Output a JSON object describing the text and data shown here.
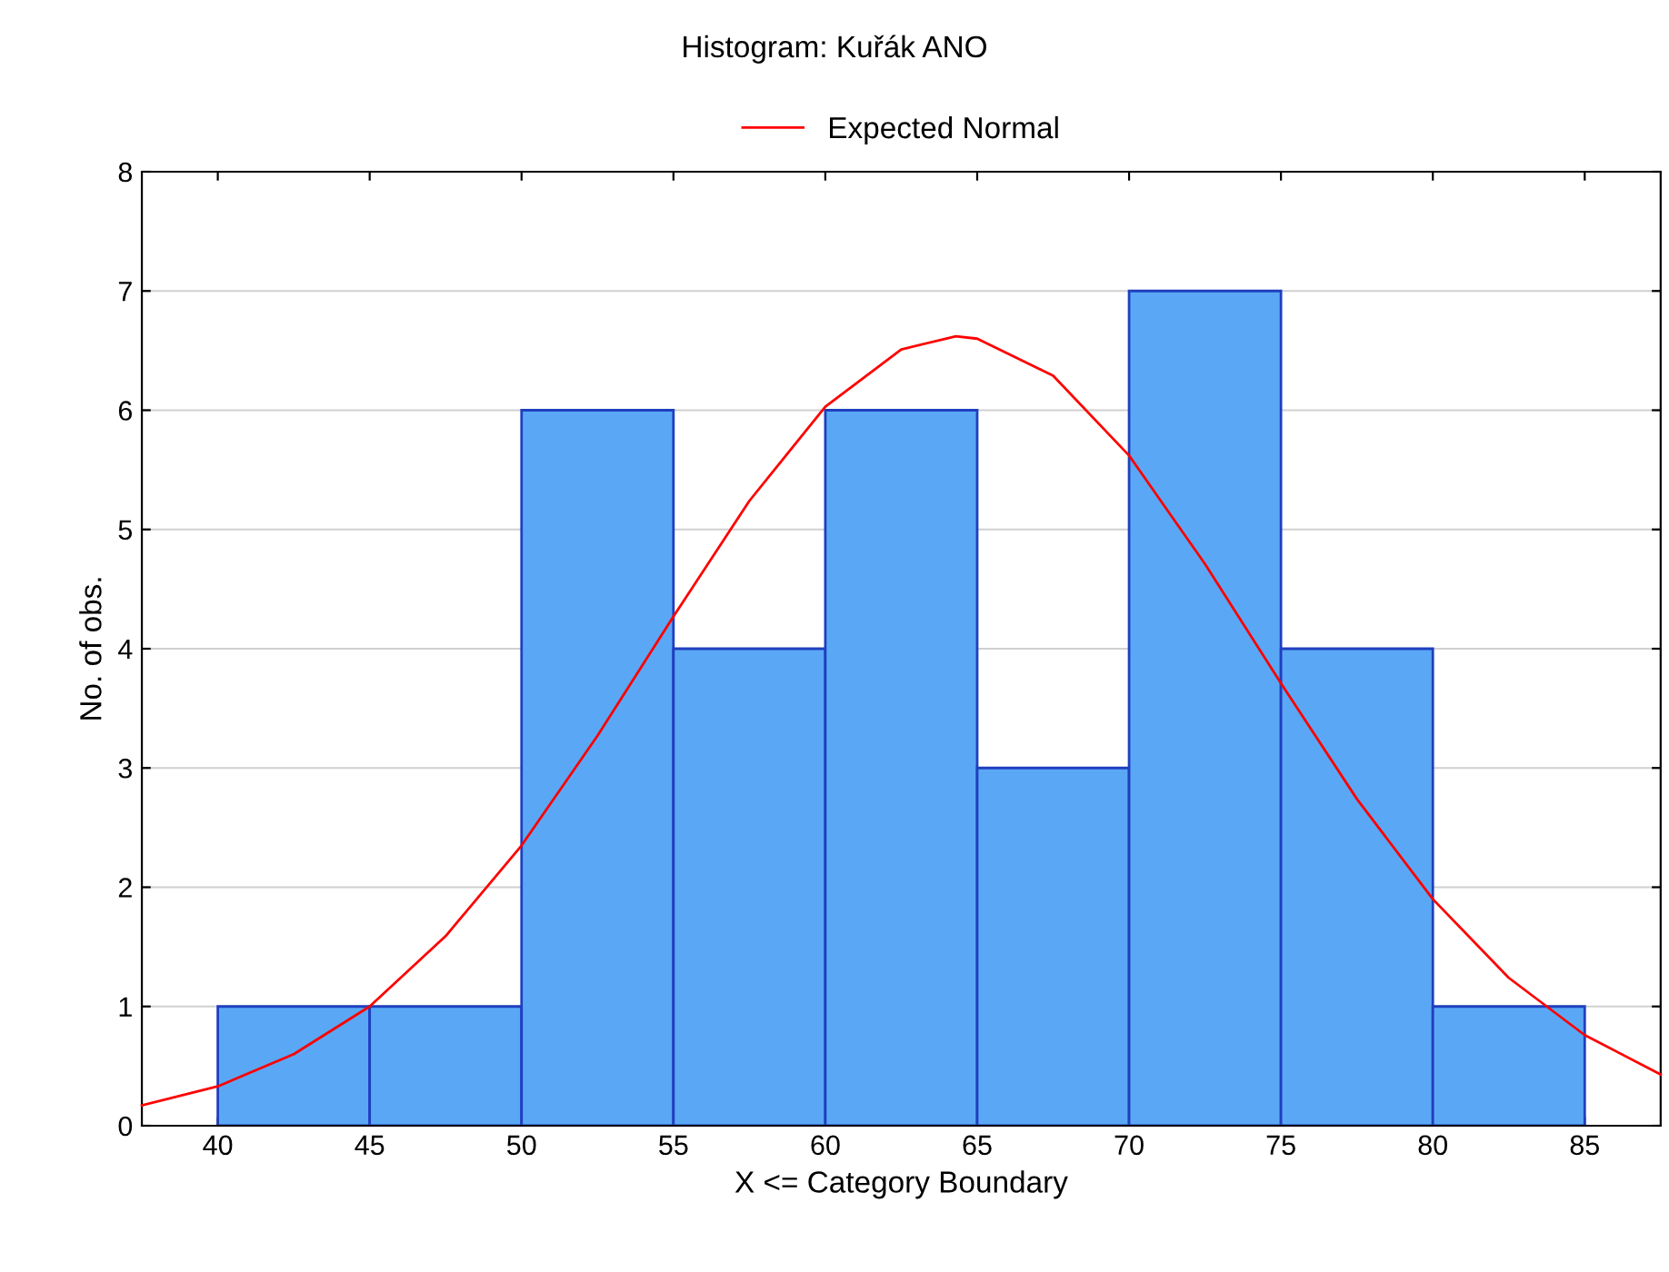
{
  "chart_data": {
    "type": "histogram",
    "title": "Histogram: Kuřák ANO",
    "xlabel": "X <= Category Boundary",
    "ylabel": "No. of obs.",
    "bins": [
      40,
      45,
      50,
      55,
      60,
      65,
      70,
      75,
      80,
      85
    ],
    "values": [
      1,
      1,
      6,
      4,
      6,
      3,
      7,
      4,
      1
    ],
    "color": "#5aa8f5",
    "series": [
      {
        "name": "Expected Normal",
        "type": "line",
        "color": "#ff0000",
        "x": [
          37.5,
          40,
          42.5,
          45,
          47.5,
          50,
          52.5,
          55,
          57.5,
          60,
          62.5,
          64.3,
          65,
          67.5,
          70,
          72.5,
          75,
          77.5,
          80,
          82.5,
          85,
          87.5
        ],
        "values": [
          0.17,
          0.33,
          0.6,
          1.0,
          1.59,
          2.35,
          3.27,
          4.27,
          5.24,
          6.03,
          6.51,
          6.62,
          6.6,
          6.29,
          5.62,
          4.71,
          3.71,
          2.74,
          1.9,
          1.24,
          0.76,
          0.43
        ]
      }
    ],
    "xlim": [
      37.5,
      87.5
    ],
    "ylim": [
      0,
      8
    ],
    "xticks": [
      40,
      45,
      50,
      55,
      60,
      65,
      70,
      75,
      80,
      85
    ],
    "yticks": [
      0,
      1,
      2,
      3,
      4,
      5,
      6,
      7,
      8
    ],
    "grid": "y",
    "legend": "top",
    "marker": "none",
    "line_style": "solid"
  }
}
